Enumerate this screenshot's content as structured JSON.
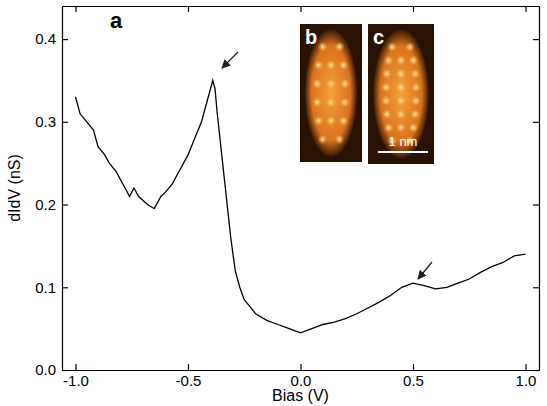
{
  "chart_data": {
    "type": "line",
    "x_label": "Bias (V)",
    "y_label": "dIdV (nS)",
    "annotations": [
      "a",
      "b",
      "c",
      "1 nm"
    ],
    "color": "#000000",
    "x": [
      -1.0,
      -0.98,
      -0.95,
      -0.92,
      -0.9,
      -0.87,
      -0.85,
      -0.82,
      -0.8,
      -0.78,
      -0.76,
      -0.74,
      -0.72,
      -0.7,
      -0.68,
      -0.65,
      -0.62,
      -0.6,
      -0.57,
      -0.54,
      -0.5,
      -0.47,
      -0.44,
      -0.42,
      -0.4,
      -0.39,
      -0.38,
      -0.37,
      -0.35,
      -0.33,
      -0.31,
      -0.29,
      -0.27,
      -0.25,
      -0.22,
      -0.2,
      -0.15,
      -0.1,
      -0.05,
      0.0,
      0.05,
      0.1,
      0.15,
      0.2,
      0.25,
      0.3,
      0.35,
      0.4,
      0.45,
      0.5,
      0.55,
      0.6,
      0.65,
      0.7,
      0.75,
      0.8,
      0.85,
      0.9,
      0.95,
      1.0
    ],
    "values": [
      0.33,
      0.31,
      0.3,
      0.29,
      0.27,
      0.26,
      0.25,
      0.24,
      0.23,
      0.22,
      0.21,
      0.22,
      0.21,
      0.205,
      0.2,
      0.195,
      0.21,
      0.215,
      0.225,
      0.24,
      0.26,
      0.28,
      0.3,
      0.32,
      0.34,
      0.35,
      0.34,
      0.31,
      0.26,
      0.21,
      0.16,
      0.12,
      0.1,
      0.085,
      0.075,
      0.068,
      0.06,
      0.055,
      0.05,
      0.045,
      0.05,
      0.055,
      0.058,
      0.062,
      0.068,
      0.075,
      0.082,
      0.09,
      0.1,
      0.105,
      0.102,
      0.098,
      0.1,
      0.105,
      0.11,
      0.118,
      0.125,
      0.13,
      0.138,
      0.14
    ],
    "xlim": [
      -1.06,
      1.06
    ],
    "xticks": [
      {
        "value": -1.0,
        "label": "-1.0"
      },
      {
        "value": -0.5,
        "label": "-0.5"
      },
      {
        "value": 0.0,
        "label": "0.0"
      },
      {
        "value": 0.5,
        "label": "0.5"
      },
      {
        "value": 1.0,
        "label": "1.0"
      }
    ],
    "ylim": [
      0.0,
      0.44
    ],
    "yticks": [
      {
        "value": 0.0,
        "label": "0.0"
      },
      {
        "value": 0.1,
        "label": "0.1"
      },
      {
        "value": 0.2,
        "label": "0.2"
      },
      {
        "value": 0.3,
        "label": "0.3"
      },
      {
        "value": 0.4,
        "label": "0.4"
      }
    ],
    "grid": false
  }
}
